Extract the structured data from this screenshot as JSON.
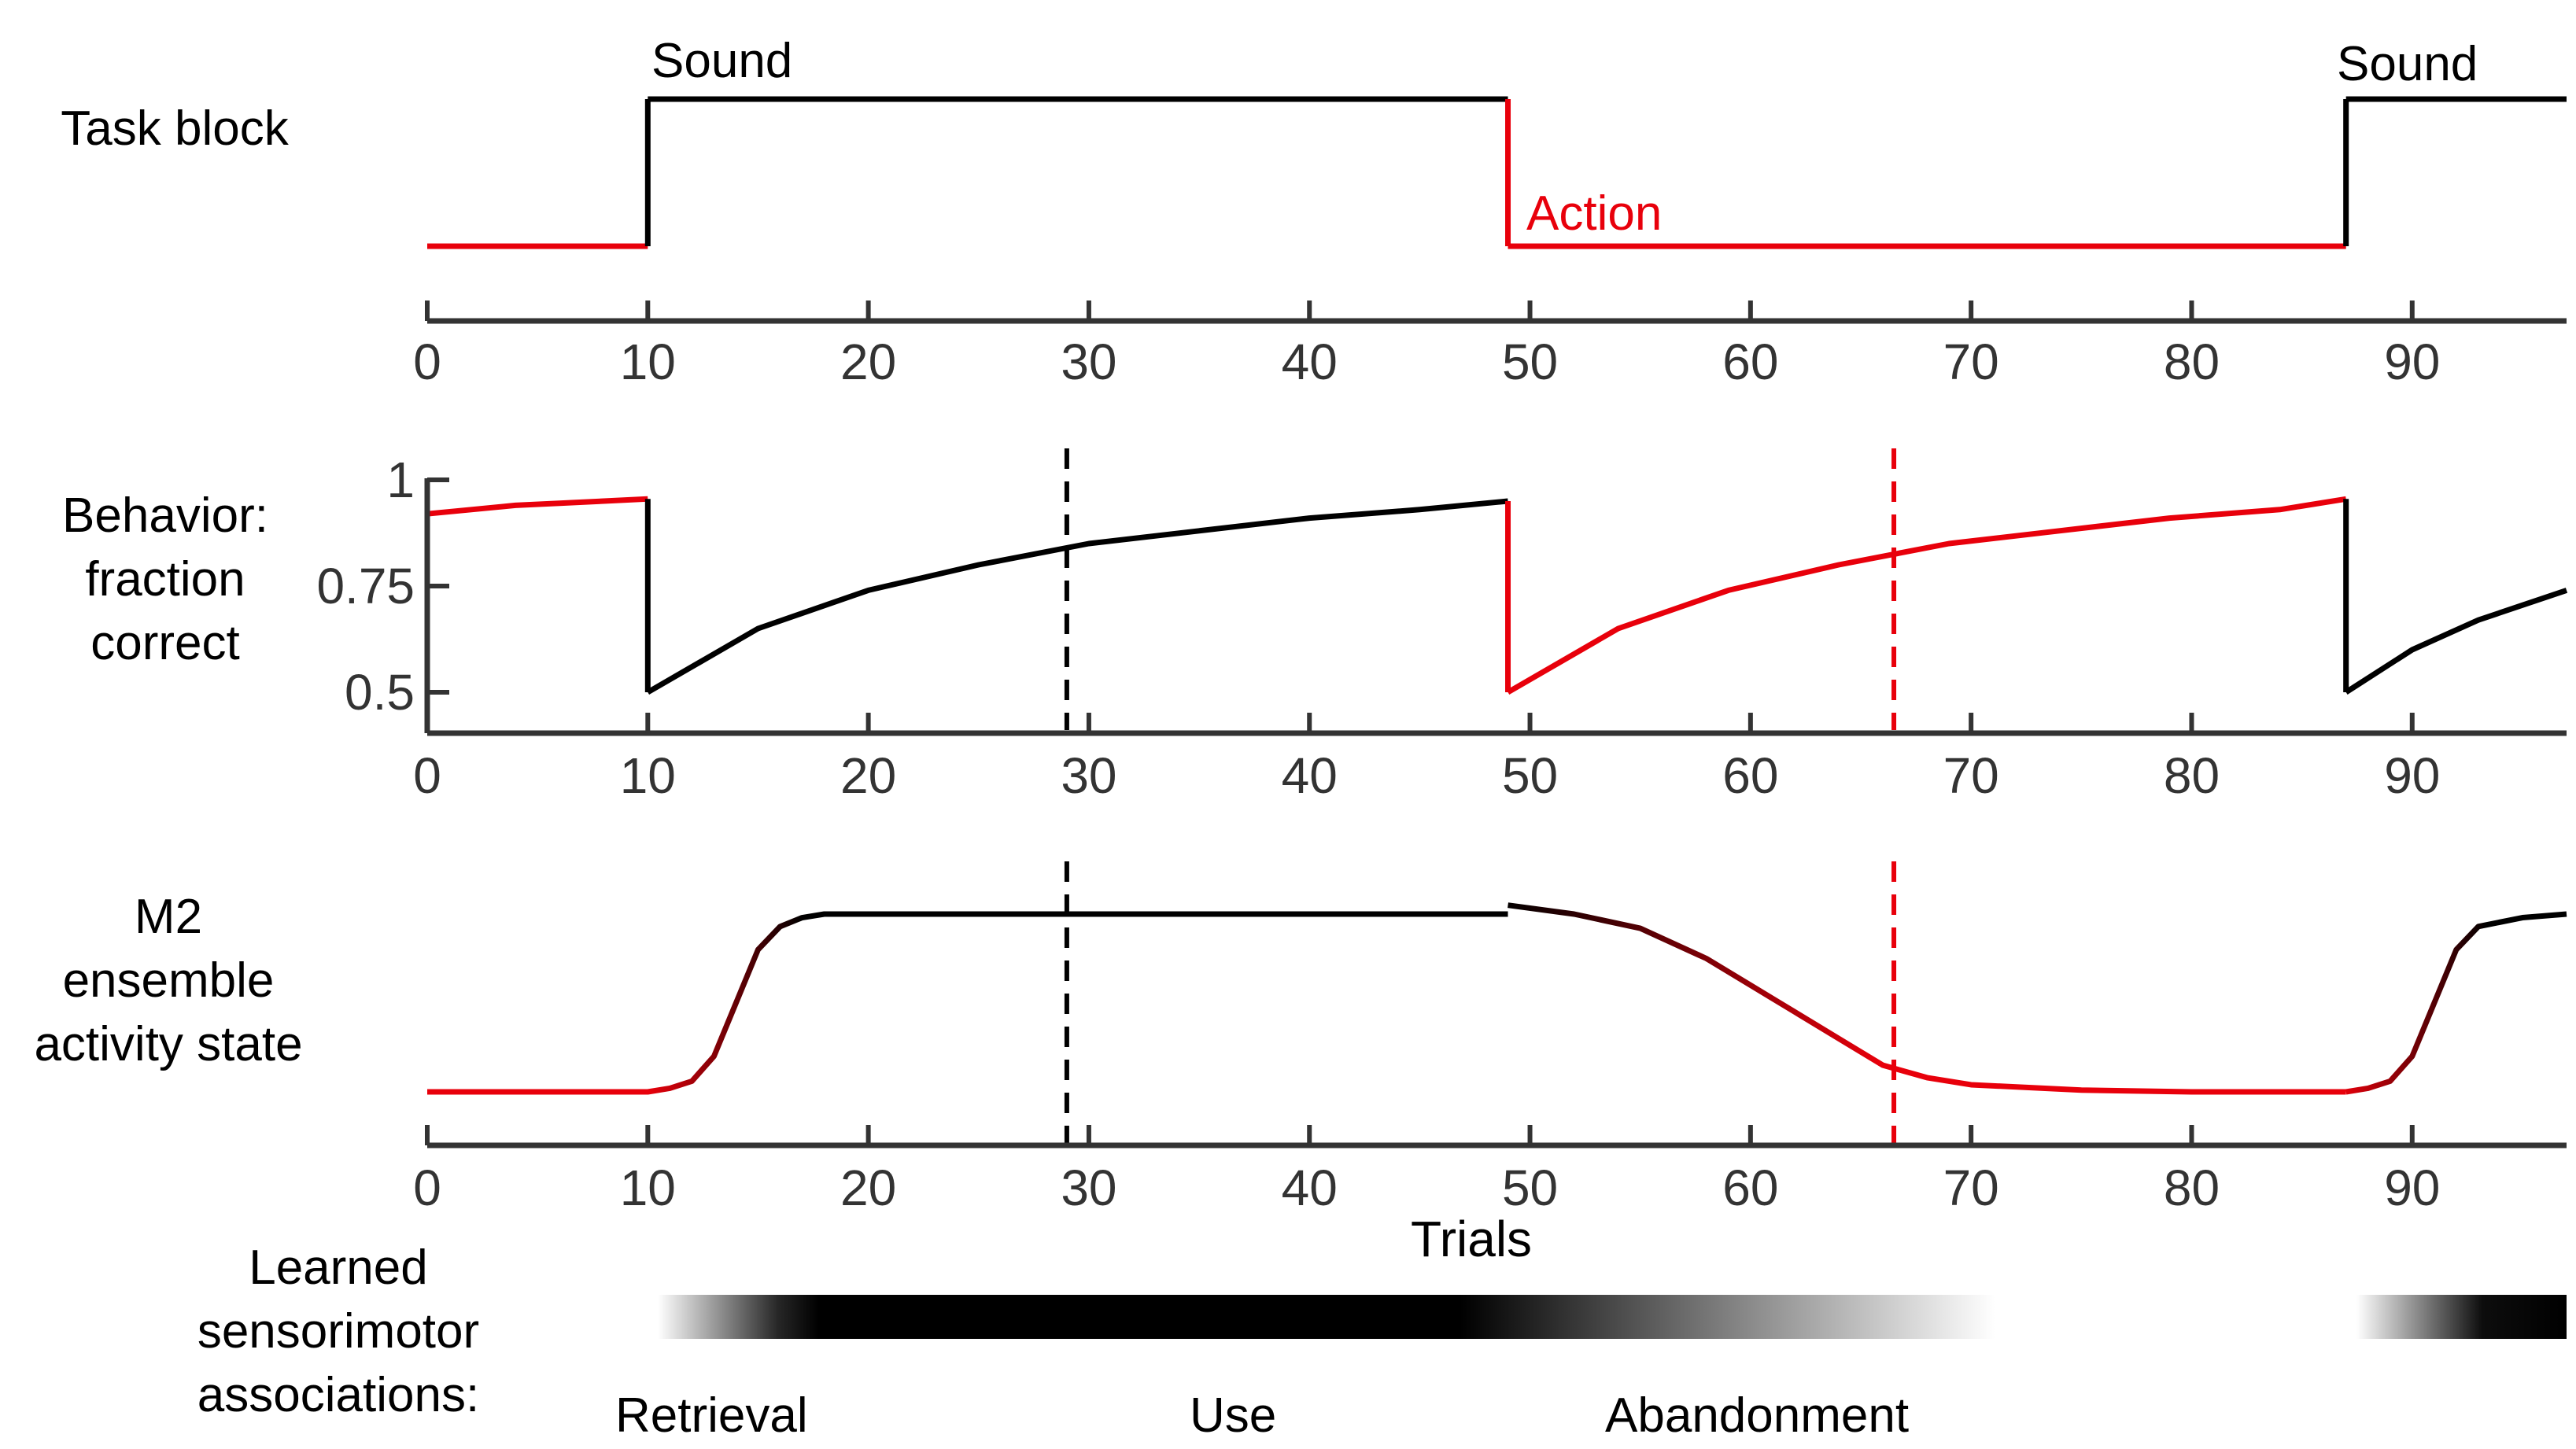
{
  "colors": {
    "black": "#000000",
    "red": "#e8000b",
    "axis": "#333333"
  },
  "chart_data": [
    {
      "type": "line",
      "row_label": [
        "Task block"
      ],
      "xlim": [
        0,
        97
      ],
      "x_ticks": [
        0,
        10,
        20,
        30,
        40,
        50,
        60,
        70,
        80,
        90
      ],
      "block_switches": [
        10,
        49,
        87
      ],
      "segments": [
        {
          "x": [
            0,
            10
          ],
          "level": "low",
          "color": "red"
        },
        {
          "x": [
            10,
            49
          ],
          "level": "high",
          "color": "black"
        },
        {
          "x": [
            49,
            87
          ],
          "level": "low",
          "color": "red"
        },
        {
          "x": [
            87,
            97
          ],
          "level": "high",
          "color": "black"
        }
      ],
      "annotations": [
        {
          "text": "Sound",
          "x": 10,
          "color": "black"
        },
        {
          "text": "Action",
          "x": 50,
          "color": "red"
        },
        {
          "text": "Sound",
          "x": 88,
          "color": "black"
        }
      ]
    },
    {
      "type": "line",
      "row_label": [
        "Behavior:",
        "fraction",
        "correct"
      ],
      "xlim": [
        0,
        97
      ],
      "ylim": [
        0.4,
        1.0
      ],
      "x_ticks": [
        0,
        10,
        20,
        30,
        40,
        50,
        60,
        70,
        80,
        90
      ],
      "y_ticks": [
        "1",
        "0.75",
        "0.5"
      ],
      "y_tick_values": [
        1,
        0.75,
        0.5
      ],
      "series": [
        {
          "x": [
            0,
            2,
            4,
            6,
            8,
            10
          ],
          "y": [
            0.92,
            0.93,
            0.94,
            0.945,
            0.95,
            0.955
          ],
          "color": "red"
        },
        {
          "x": [
            10,
            15,
            20,
            25,
            30,
            35,
            40,
            45,
            49
          ],
          "y": [
            0.5,
            0.65,
            0.74,
            0.8,
            0.85,
            0.88,
            0.91,
            0.93,
            0.95
          ],
          "color": "black"
        },
        {
          "x": [
            49,
            54,
            59,
            64,
            69,
            74,
            79,
            84,
            87
          ],
          "y": [
            0.5,
            0.65,
            0.74,
            0.8,
            0.85,
            0.88,
            0.91,
            0.93,
            0.955
          ],
          "color": "red"
        },
        {
          "x": [
            87,
            90,
            93,
            97
          ],
          "y": [
            0.5,
            0.6,
            0.67,
            0.74
          ],
          "color": "black"
        }
      ],
      "dashed_lines": [
        {
          "x": 29,
          "color": "black"
        },
        {
          "x": 66.5,
          "color": "red"
        }
      ]
    },
    {
      "type": "line",
      "row_label": [
        "M2",
        "ensemble",
        "activity state"
      ],
      "xlim": [
        0,
        97
      ],
      "x_ticks": [
        0,
        10,
        20,
        30,
        40,
        50,
        60,
        70,
        80,
        90
      ],
      "xlabel": "Trials",
      "series": [
        {
          "x": [
            0,
            10,
            11,
            12,
            13,
            14,
            15,
            16,
            17,
            18,
            20,
            25,
            30,
            40,
            49
          ],
          "y": [
            0,
            0,
            0.02,
            0.06,
            0.2,
            0.5,
            0.8,
            0.93,
            0.98,
            1,
            1,
            1,
            1,
            1,
            1
          ],
          "color": "red-to-black"
        },
        {
          "x": [
            49,
            52,
            55,
            58,
            60,
            62,
            64,
            66,
            68,
            70,
            75,
            80,
            87
          ],
          "y": [
            1.05,
            1.0,
            0.92,
            0.75,
            0.6,
            0.45,
            0.3,
            0.15,
            0.08,
            0.04,
            0.01,
            0,
            0
          ],
          "color": "black-to-red"
        },
        {
          "x": [
            87,
            88,
            89,
            90,
            91,
            92,
            93,
            95,
            97
          ],
          "y": [
            0,
            0.02,
            0.06,
            0.2,
            0.5,
            0.8,
            0.93,
            0.98,
            1
          ],
          "color": "red-to-black"
        }
      ],
      "dashed_lines": [
        {
          "x": 29,
          "color": "black"
        },
        {
          "x": 66.5,
          "color": "red"
        }
      ]
    }
  ],
  "associations": {
    "label": [
      "Learned",
      "sensorimotor",
      "associations:"
    ],
    "phases": [
      "Retrieval",
      "Use",
      "Abandonment"
    ]
  }
}
